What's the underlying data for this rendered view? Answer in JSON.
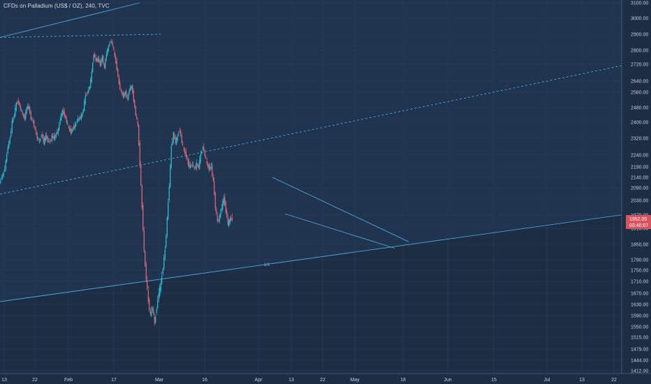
{
  "legend": {
    "title": "CFDs on Palladium (US$ / OZ), 240, TVC"
  },
  "price_tag": {
    "price": "1952.05",
    "countdown": "03:40:07",
    "color": "#d9535f"
  },
  "annotation": "1/1",
  "colors": {
    "background": "#1c2d44",
    "grid": "#2a4060",
    "up": "#2ec4d6",
    "down": "#e06b7a",
    "trendline": "#4fb0e0",
    "axis_panel": "#1c2d44"
  },
  "chart_data": {
    "type": "candlestick",
    "title": "CFDs on Palladium (US$ / OZ), 240, TVC",
    "x_ticks": [
      "13",
      "22",
      "Feb",
      "17",
      "Mar",
      "16",
      "Apr",
      "13",
      "22",
      "May",
      "18",
      "Jun",
      "15",
      "Jul",
      "13",
      "22"
    ],
    "y_ticks": [
      3100.0,
      3000.0,
      2900.0,
      2800.0,
      2720.0,
      2640.0,
      2560.0,
      2480.0,
      2400.0,
      2320.0,
      2240.0,
      2190.0,
      2140.0,
      2090.0,
      2030.0,
      1970.0,
      1910.0,
      1850.0,
      1790.0,
      1750.0,
      1710.0,
      1670.0,
      1630.0,
      1590.0,
      1550.0,
      1515.0,
      1479.0,
      1444.0,
      1412.0
    ],
    "last_price": 1952.05,
    "price_path_close": [
      [
        0,
        2110
      ],
      [
        3,
        2140
      ],
      [
        6,
        2160
      ],
      [
        9,
        2210
      ],
      [
        12,
        2280
      ],
      [
        15,
        2320
      ],
      [
        18,
        2400
      ],
      [
        21,
        2440
      ],
      [
        24,
        2500
      ],
      [
        27,
        2510
      ],
      [
        30,
        2470
      ],
      [
        33,
        2440
      ],
      [
        36,
        2420
      ],
      [
        39,
        2480
      ],
      [
        42,
        2480
      ],
      [
        45,
        2420
      ],
      [
        48,
        2400
      ],
      [
        51,
        2360
      ],
      [
        54,
        2320
      ],
      [
        57,
        2300
      ],
      [
        60,
        2340
      ],
      [
        63,
        2300
      ],
      [
        66,
        2330
      ],
      [
        69,
        2310
      ],
      [
        72,
        2300
      ],
      [
        75,
        2330
      ],
      [
        78,
        2320
      ],
      [
        81,
        2340
      ],
      [
        84,
        2360
      ],
      [
        87,
        2420
      ],
      [
        90,
        2460
      ],
      [
        93,
        2440
      ],
      [
        96,
        2400
      ],
      [
        99,
        2370
      ],
      [
        102,
        2350
      ],
      [
        105,
        2370
      ],
      [
        108,
        2380
      ],
      [
        111,
        2410
      ],
      [
        114,
        2420
      ],
      [
        117,
        2430
      ],
      [
        120,
        2470
      ],
      [
        123,
        2540
      ],
      [
        126,
        2560
      ],
      [
        129,
        2600
      ],
      [
        132,
        2680
      ],
      [
        135,
        2780
      ],
      [
        138,
        2740
      ],
      [
        141,
        2750
      ],
      [
        144,
        2720
      ],
      [
        147,
        2760
      ],
      [
        150,
        2700
      ],
      [
        153,
        2780
      ],
      [
        156,
        2820
      ],
      [
        159,
        2860
      ],
      [
        162,
        2830
      ],
      [
        165,
        2760
      ],
      [
        168,
        2700
      ],
      [
        171,
        2620
      ],
      [
        174,
        2560
      ],
      [
        177,
        2540
      ],
      [
        180,
        2560
      ],
      [
        183,
        2520
      ],
      [
        186,
        2580
      ],
      [
        189,
        2600
      ],
      [
        192,
        2520
      ],
      [
        195,
        2440
      ],
      [
        198,
        2380
      ],
      [
        201,
        2200
      ],
      [
        204,
        2000
      ],
      [
        207,
        1820
      ],
      [
        210,
        1720
      ],
      [
        213,
        1640
      ],
      [
        216,
        1590
      ],
      [
        219,
        1620
      ],
      [
        222,
        1560
      ],
      [
        225,
        1620
      ],
      [
        228,
        1670
      ],
      [
        231,
        1700
      ],
      [
        234,
        1760
      ],
      [
        237,
        1830
      ],
      [
        240,
        1950
      ],
      [
        243,
        2100
      ],
      [
        246,
        2280
      ],
      [
        249,
        2340
      ],
      [
        252,
        2300
      ],
      [
        255,
        2330
      ],
      [
        258,
        2360
      ],
      [
        261,
        2300
      ],
      [
        264,
        2260
      ],
      [
        267,
        2240
      ],
      [
        270,
        2200
      ],
      [
        273,
        2190
      ],
      [
        276,
        2200
      ],
      [
        279,
        2180
      ],
      [
        282,
        2200
      ],
      [
        285,
        2190
      ],
      [
        288,
        2240
      ],
      [
        291,
        2280
      ],
      [
        294,
        2240
      ],
      [
        297,
        2200
      ],
      [
        300,
        2180
      ],
      [
        303,
        2190
      ],
      [
        306,
        2120
      ],
      [
        309,
        2000
      ],
      [
        312,
        1940
      ],
      [
        315,
        1960
      ],
      [
        318,
        2000
      ],
      [
        321,
        2040
      ],
      [
        324,
        1990
      ],
      [
        327,
        1930
      ],
      [
        330,
        1950
      ],
      [
        333,
        1952
      ]
    ],
    "trendlines": [
      {
        "style": "solid",
        "from": [
          0,
          1640
        ],
        "to": [
          900,
          1975
        ]
      },
      {
        "style": "dashed",
        "from": [
          0,
          2060
        ],
        "to": [
          900,
          2720
        ]
      },
      {
        "style": "dashed",
        "from": [
          0,
          2880
        ],
        "to": [
          230,
          2900
        ]
      },
      {
        "style": "solid",
        "from": [
          0,
          2880
        ],
        "to": [
          200,
          3100
        ]
      },
      {
        "style": "solid",
        "from": [
          390,
          2140
        ],
        "to": [
          585,
          1860
        ]
      },
      {
        "style": "solid",
        "from": [
          408,
          1975
        ],
        "to": [
          565,
          1835
        ]
      }
    ],
    "grid": true,
    "axis_position": "right"
  }
}
